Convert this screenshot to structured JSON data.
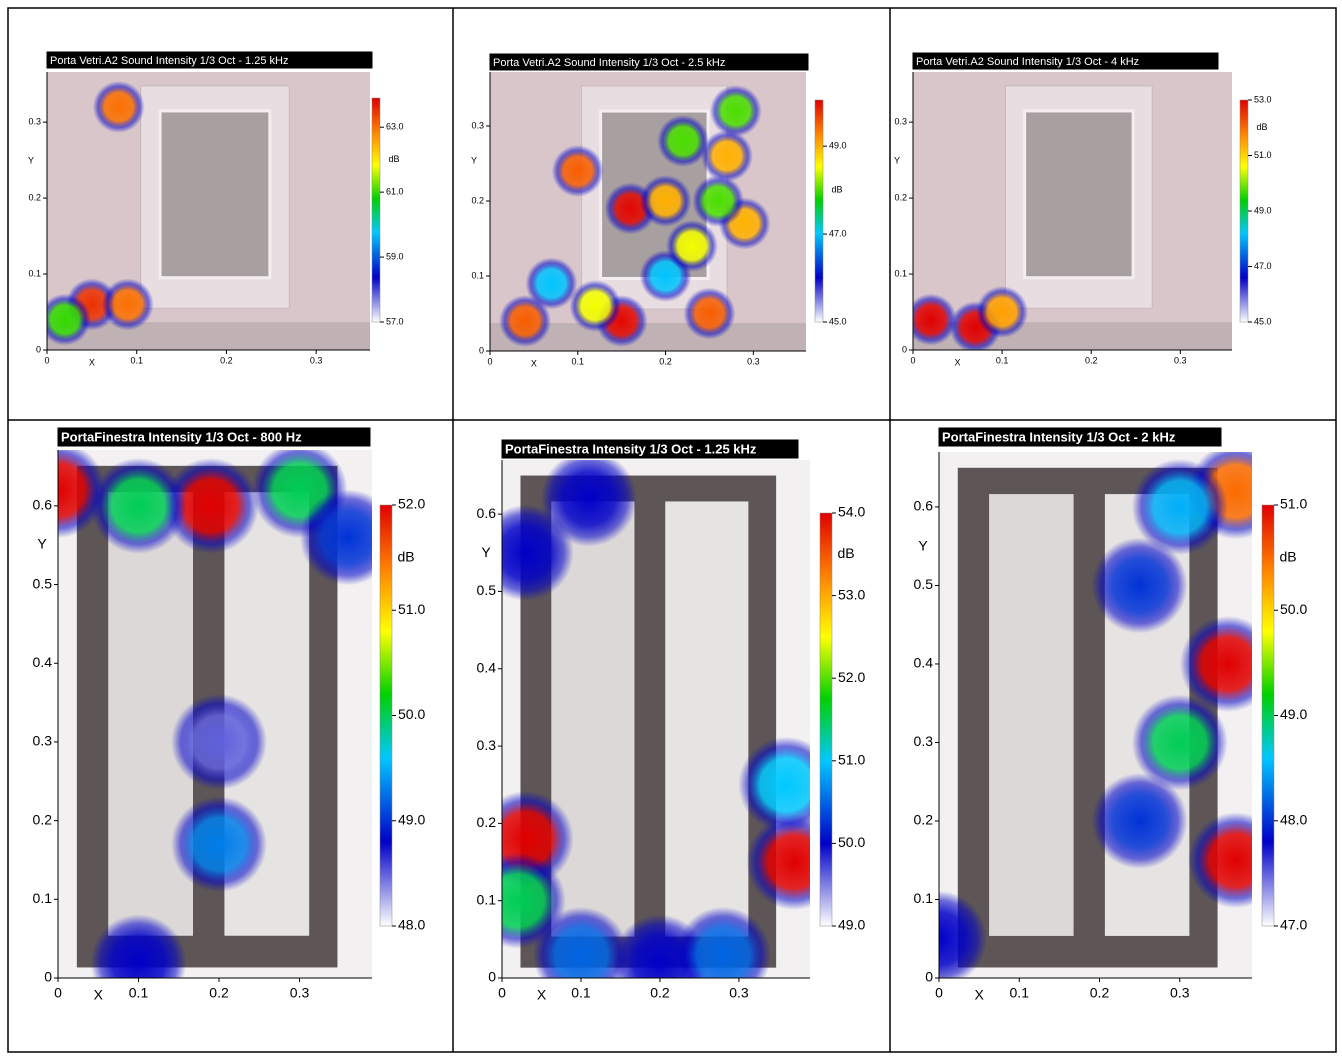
{
  "chart_data": [
    {
      "type": "heatmap",
      "title": "Porta Vetri.A2 Sound Intensity 1/3 Oct - 1.25 kHz",
      "x_label": "X",
      "y_label": "Y",
      "colorbar_label": "dB",
      "xlim": [
        0,
        0.36
      ],
      "ylim": [
        0,
        0.366
      ],
      "xticks": [
        0,
        0.1,
        0.2,
        0.3
      ],
      "yticks": [
        0,
        0.1,
        0.2,
        0.3
      ],
      "clim": [
        57,
        63.9
      ],
      "colorbar_ticks": [
        {
          "value": 57,
          "label": "57.0"
        },
        {
          "value": 59,
          "label": "59.0"
        },
        {
          "value": 61,
          "label": "61.0"
        },
        {
          "value": 63,
          "label": "63.0"
        }
      ],
      "x": [
        0.08,
        0.05,
        0.09,
        0.02
      ],
      "y": [
        0.32,
        0.06,
        0.06,
        0.04
      ],
      "values": [
        63,
        63.5,
        63,
        61
      ]
    },
    {
      "type": "heatmap",
      "title": "Porta Vetri.A2 Sound Intensity 1/3 Oct - 2.5 kHz",
      "x_label": "X",
      "y_label": "Y",
      "colorbar_label": "dB",
      "xlim": [
        0,
        0.36
      ],
      "ylim": [
        0,
        0.372
      ],
      "xticks": [
        0,
        0.1,
        0.2,
        0.3
      ],
      "yticks": [
        0,
        0.1,
        0.2,
        0.3
      ],
      "clim": [
        45,
        50.05
      ],
      "colorbar_ticks": [
        {
          "value": 45,
          "label": "45.0"
        },
        {
          "value": 47,
          "label": "47.0"
        },
        {
          "value": 49,
          "label": "49.0"
        }
      ],
      "x": [
        0.04,
        0.1,
        0.16,
        0.2,
        0.15,
        0.25,
        0.29,
        0.27,
        0.28,
        0.22,
        0.2,
        0.12,
        0.23,
        0.07,
        0.26
      ],
      "y": [
        0.04,
        0.24,
        0.19,
        0.2,
        0.04,
        0.05,
        0.17,
        0.26,
        0.32,
        0.28,
        0.1,
        0.06,
        0.14,
        0.09,
        0.2
      ],
      "values": [
        49.5,
        49.5,
        50,
        49,
        50,
        49.5,
        49,
        49,
        48,
        48,
        47,
        48.5,
        48.5,
        47,
        48
      ]
    },
    {
      "type": "heatmap",
      "title": "Porta Vetri.A2 Sound Intensity 1/3 Oct - 4 kHz",
      "x_label": "X",
      "y_label": "Y",
      "colorbar_label": "dB",
      "xlim": [
        0,
        0.358
      ],
      "ylim": [
        0,
        0.366
      ],
      "xticks": [
        0,
        0.1,
        0.2,
        0.3
      ],
      "yticks": [
        0,
        0.1,
        0.2,
        0.3
      ],
      "clim": [
        45,
        53
      ],
      "colorbar_ticks": [
        {
          "value": 45,
          "label": "45.0"
        },
        {
          "value": 47,
          "label": "47.0"
        },
        {
          "value": 49,
          "label": "49.0"
        },
        {
          "value": 51,
          "label": "51.0"
        },
        {
          "value": 53,
          "label": "53.0"
        }
      ],
      "x": [
        0.02,
        0.07,
        0.1
      ],
      "y": [
        0.04,
        0.03,
        0.05
      ],
      "values": [
        53,
        53,
        51.5
      ]
    },
    {
      "type": "heatmap",
      "title": "PortaFinestra Intensity 1/3 Oct - 800 Hz",
      "x_label": "X",
      "y_label": "Y",
      "colorbar_label": "dB",
      "xlim": [
        0,
        0.39
      ],
      "ylim": [
        0,
        0.671
      ],
      "xticks": [
        0,
        0.1,
        0.2,
        0.3
      ],
      "yticks": [
        0,
        0.1,
        0.2,
        0.3,
        0.4,
        0.5,
        0.6
      ],
      "clim": [
        48,
        52
      ],
      "colorbar_ticks": [
        {
          "value": 48,
          "label": "48.0"
        },
        {
          "value": 49,
          "label": "49.0"
        },
        {
          "value": 50,
          "label": "50.0"
        },
        {
          "value": 51,
          "label": "51.0"
        },
        {
          "value": 52,
          "label": "52.0"
        }
      ],
      "x": [
        0.0,
        0.19,
        0.1,
        0.3,
        0.36,
        0.2,
        0.2,
        0.1
      ],
      "y": [
        0.62,
        0.6,
        0.6,
        0.62,
        0.56,
        0.17,
        0.3,
        0.02
      ],
      "values": [
        52,
        52,
        50,
        50,
        49,
        49.3,
        48.5,
        48.8
      ]
    },
    {
      "type": "heatmap",
      "title": "PortaFinestra Intensity 1/3 Oct - 1.25 kHz",
      "x_label": "X",
      "y_label": "Y",
      "colorbar_label": "dB",
      "xlim": [
        0,
        0.39
      ],
      "ylim": [
        0,
        0.67
      ],
      "xticks": [
        0,
        0.1,
        0.2,
        0.3
      ],
      "yticks": [
        0,
        0.1,
        0.2,
        0.3,
        0.4,
        0.5,
        0.6
      ],
      "clim": [
        49,
        54
      ],
      "colorbar_ticks": [
        {
          "value": 49,
          "label": "49.0"
        },
        {
          "value": 50,
          "label": "50.0"
        },
        {
          "value": 51,
          "label": "51.0"
        },
        {
          "value": 52,
          "label": "52.0"
        },
        {
          "value": 53,
          "label": "53.0"
        },
        {
          "value": 54,
          "label": "54.0"
        }
      ],
      "x": [
        0.03,
        0.37,
        0.02,
        0.36,
        0.11,
        0.03,
        0.2,
        0.1,
        0.28
      ],
      "y": [
        0.18,
        0.15,
        0.1,
        0.25,
        0.62,
        0.55,
        0.02,
        0.03,
        0.03
      ],
      "values": [
        54,
        54,
        51.5,
        51,
        50,
        50,
        50,
        50.5,
        50.5
      ]
    },
    {
      "type": "heatmap",
      "title": "PortaFinestra Intensity 1/3 Oct - 2 kHz",
      "x_label": "X",
      "y_label": "Y",
      "colorbar_label": "dB",
      "xlim": [
        0,
        0.39
      ],
      "ylim": [
        0,
        0.67
      ],
      "xticks": [
        0,
        0.1,
        0.2,
        0.3
      ],
      "yticks": [
        0,
        0.1,
        0.2,
        0.3,
        0.4,
        0.5,
        0.6
      ],
      "clim": [
        47,
        51
      ],
      "colorbar_ticks": [
        {
          "value": 47,
          "label": "47.0"
        },
        {
          "value": 48,
          "label": "48.0"
        },
        {
          "value": 49,
          "label": "49.0"
        },
        {
          "value": 50,
          "label": "50.0"
        },
        {
          "value": 51,
          "label": "51.0"
        }
      ],
      "x": [
        0.36,
        0.37,
        0.37,
        0.3,
        0.25,
        0.25,
        0.3,
        0.0
      ],
      "y": [
        0.4,
        0.15,
        0.62,
        0.3,
        0.5,
        0.2,
        0.6,
        0.05
      ],
      "values": [
        51,
        51,
        50.5,
        49,
        48,
        48,
        48.5,
        47.8
      ]
    }
  ]
}
